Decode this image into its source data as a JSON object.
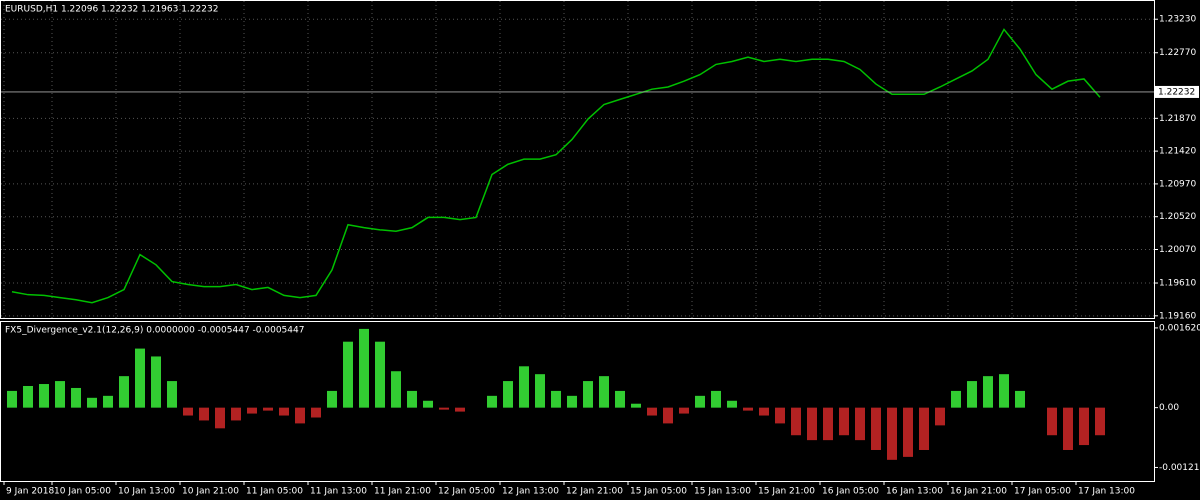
{
  "chart_data": [
    {
      "type": "line",
      "title": "EURUSD,H1  1.22096 1.22232 1.21963 1.22232",
      "color": "#00c000",
      "grid": true,
      "categories": [
        "9 Jan 2018",
        null,
        null,
        "10 Jan 05:00",
        null,
        null,
        null,
        "10 Jan 13:00",
        null,
        null,
        null,
        "10 Jan 21:00",
        null,
        null,
        null,
        "11 Jan 05:00",
        null,
        null,
        null,
        "11 Jan 13:00",
        null,
        null,
        null,
        "11 Jan 21:00",
        null,
        null,
        null,
        "12 Jan 05:00",
        null,
        null,
        null,
        "12 Jan 13:00",
        null,
        null,
        null,
        "12 Jan 21:00",
        null,
        null,
        null,
        "15 Jan 05:00",
        null,
        null,
        null,
        "15 Jan 13:00",
        null,
        null,
        null,
        "15 Jan 21:00",
        null,
        null,
        null,
        "16 Jan 05:00",
        null,
        null,
        null,
        "16 Jan 13:00",
        null,
        null,
        null,
        "16 Jan 21:00",
        null,
        null,
        null,
        "17 Jan 05:00",
        null,
        null,
        null,
        "17 Jan 13:00",
        null
      ],
      "values": [
        1.1949,
        1.1945,
        1.1944,
        1.1941,
        1.1938,
        1.1934,
        1.1941,
        1.1952,
        1.2,
        1.1986,
        1.1963,
        1.1959,
        1.1956,
        1.1956,
        1.1959,
        1.1952,
        1.1955,
        1.1944,
        1.1941,
        1.1944,
        1.1979,
        1.2041,
        1.2037,
        1.2034,
        1.2032,
        1.2037,
        1.2051,
        1.2051,
        1.2048,
        1.2051,
        1.211,
        1.2124,
        1.2131,
        1.2131,
        1.2137,
        1.2158,
        1.2186,
        1.2206,
        1.2213,
        1.222,
        1.2227,
        1.223,
        1.2238,
        1.2247,
        1.2261,
        1.2265,
        1.2271,
        1.2265,
        1.2268,
        1.2265,
        1.2268,
        1.2268,
        1.2265,
        1.2254,
        1.2234,
        1.222,
        1.222,
        1.222,
        1.223,
        1.2241,
        1.2252,
        1.2268,
        1.2309,
        1.2282,
        1.2247,
        1.2227,
        1.2238,
        1.2241,
        1.2216
      ],
      "ylim": [
        1.1913,
        1.2348
      ],
      "yticks": [
        {
          "value": 1.2323,
          "label": "1.23230"
        },
        {
          "value": 1.2277,
          "label": "1.22770"
        },
        {
          "value": 1.2187,
          "label": "1.21870"
        },
        {
          "value": 1.2142,
          "label": "1.21420"
        },
        {
          "value": 1.2097,
          "label": "1.20970"
        },
        {
          "value": 1.2052,
          "label": "1.20520"
        },
        {
          "value": 1.2007,
          "label": "1.20070"
        },
        {
          "value": 1.1961,
          "label": "1.19610"
        },
        {
          "value": 1.1916,
          "label": "1.19160"
        }
      ],
      "current_price": {
        "value": 1.22232,
        "label": "1.22232"
      }
    },
    {
      "type": "bar",
      "title": "FX5_Divergence_v2.1(12,26,9) 0.0000000 -0.0005447 -0.0005447",
      "up_color": "#32cd32",
      "down_color": "#b22222",
      "values": [
        0.00034,
        0.00044,
        0.00048,
        0.00054,
        0.0004,
        0.0002,
        0.00024,
        0.00064,
        0.0012,
        0.00104,
        0.00054,
        -0.00016,
        -0.00026,
        -0.00042,
        -0.00026,
        -0.00012,
        -6e-05,
        -0.00016,
        -0.00032,
        -0.0002,
        0.00034,
        0.00134,
        0.0016,
        0.00134,
        0.00074,
        0.00034,
        0.00014,
        -4e-05,
        -8e-05,
        0,
        0.00024,
        0.00054,
        0.00084,
        0.00068,
        0.00034,
        0.00024,
        0.00054,
        0.00064,
        0.00034,
        8e-05,
        -0.00016,
        -0.00032,
        -0.00012,
        0.00024,
        0.00034,
        0.00014,
        -6e-05,
        -0.00016,
        -0.00032,
        -0.00056,
        -0.00066,
        -0.00066,
        -0.00056,
        -0.00066,
        -0.00086,
        -0.00106,
        -0.001,
        -0.00086,
        -0.00036,
        0.00034,
        0.00054,
        0.00064,
        0.00068,
        0.00034,
        0,
        -0.00056,
        -0.00086,
        -0.00076,
        -0.00056
      ],
      "ylim": [
        -0.00149,
        0.00174
      ],
      "yticks": [
        {
          "value": 0.00162,
          "label": "0.001620"
        },
        {
          "value": 0,
          "label": "0.00"
        },
        {
          "value": -0.001215,
          "label": "-0.001215"
        }
      ]
    }
  ]
}
